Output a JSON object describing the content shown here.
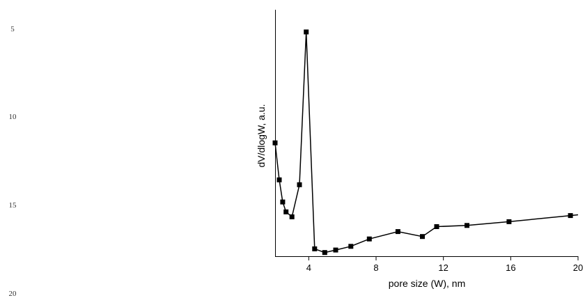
{
  "line_numbers": [
    "5",
    "10",
    "15",
    "20"
  ],
  "chart_data": {
    "type": "line",
    "title": "",
    "xlabel": "pore size (W), nm",
    "ylabel": "dV/dlogW, a.u.",
    "xlim": [
      2,
      20
    ],
    "ylim": [
      0,
      1
    ],
    "xticks": [
      4,
      8,
      12,
      16,
      20
    ],
    "yticks_shown": false,
    "grid": false,
    "marker": "square",
    "series": [
      {
        "x": [
          2.0,
          2.25,
          2.45,
          2.65,
          3.0,
          3.45,
          3.85,
          4.35,
          4.95,
          5.6,
          6.5,
          7.6,
          9.3,
          10.75,
          11.6,
          13.4,
          15.9,
          19.55
        ],
        "y": [
          0.46,
          0.31,
          0.22,
          0.18,
          0.16,
          0.29,
          0.91,
          0.03,
          0.015,
          0.025,
          0.04,
          0.07,
          0.1,
          0.08,
          0.12,
          0.125,
          0.14,
          0.165
        ]
      }
    ],
    "tail_to": {
      "x": 20,
      "y": 0.168
    }
  }
}
